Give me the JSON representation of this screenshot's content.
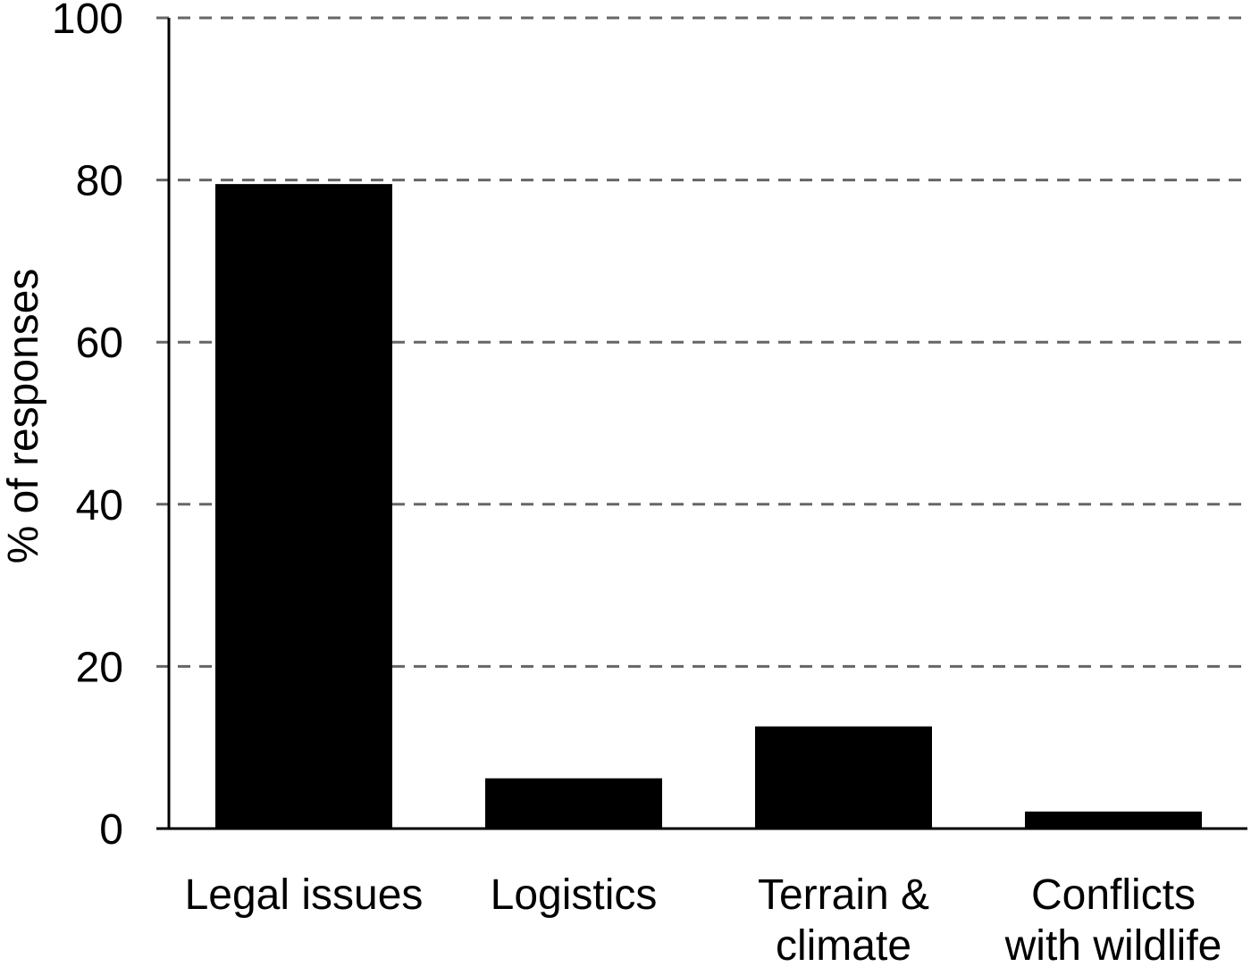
{
  "chart_data": {
    "type": "bar",
    "title": "",
    "xlabel": "",
    "ylabel": "% of responses",
    "ylim": [
      0,
      100
    ],
    "yticks": [
      0,
      20,
      40,
      60,
      80,
      100
    ],
    "grid": "horizontal dashed",
    "categories": [
      [
        "Legal issues"
      ],
      [
        "Logistics"
      ],
      [
        "Terrain &",
        "climate"
      ],
      [
        "Conflicts",
        "with wildlife"
      ]
    ],
    "values": [
      79.5,
      6.2,
      12.6,
      2.1
    ],
    "colors": {
      "bar": "#000000",
      "grid": "#666666",
      "axis": "#000000"
    }
  }
}
